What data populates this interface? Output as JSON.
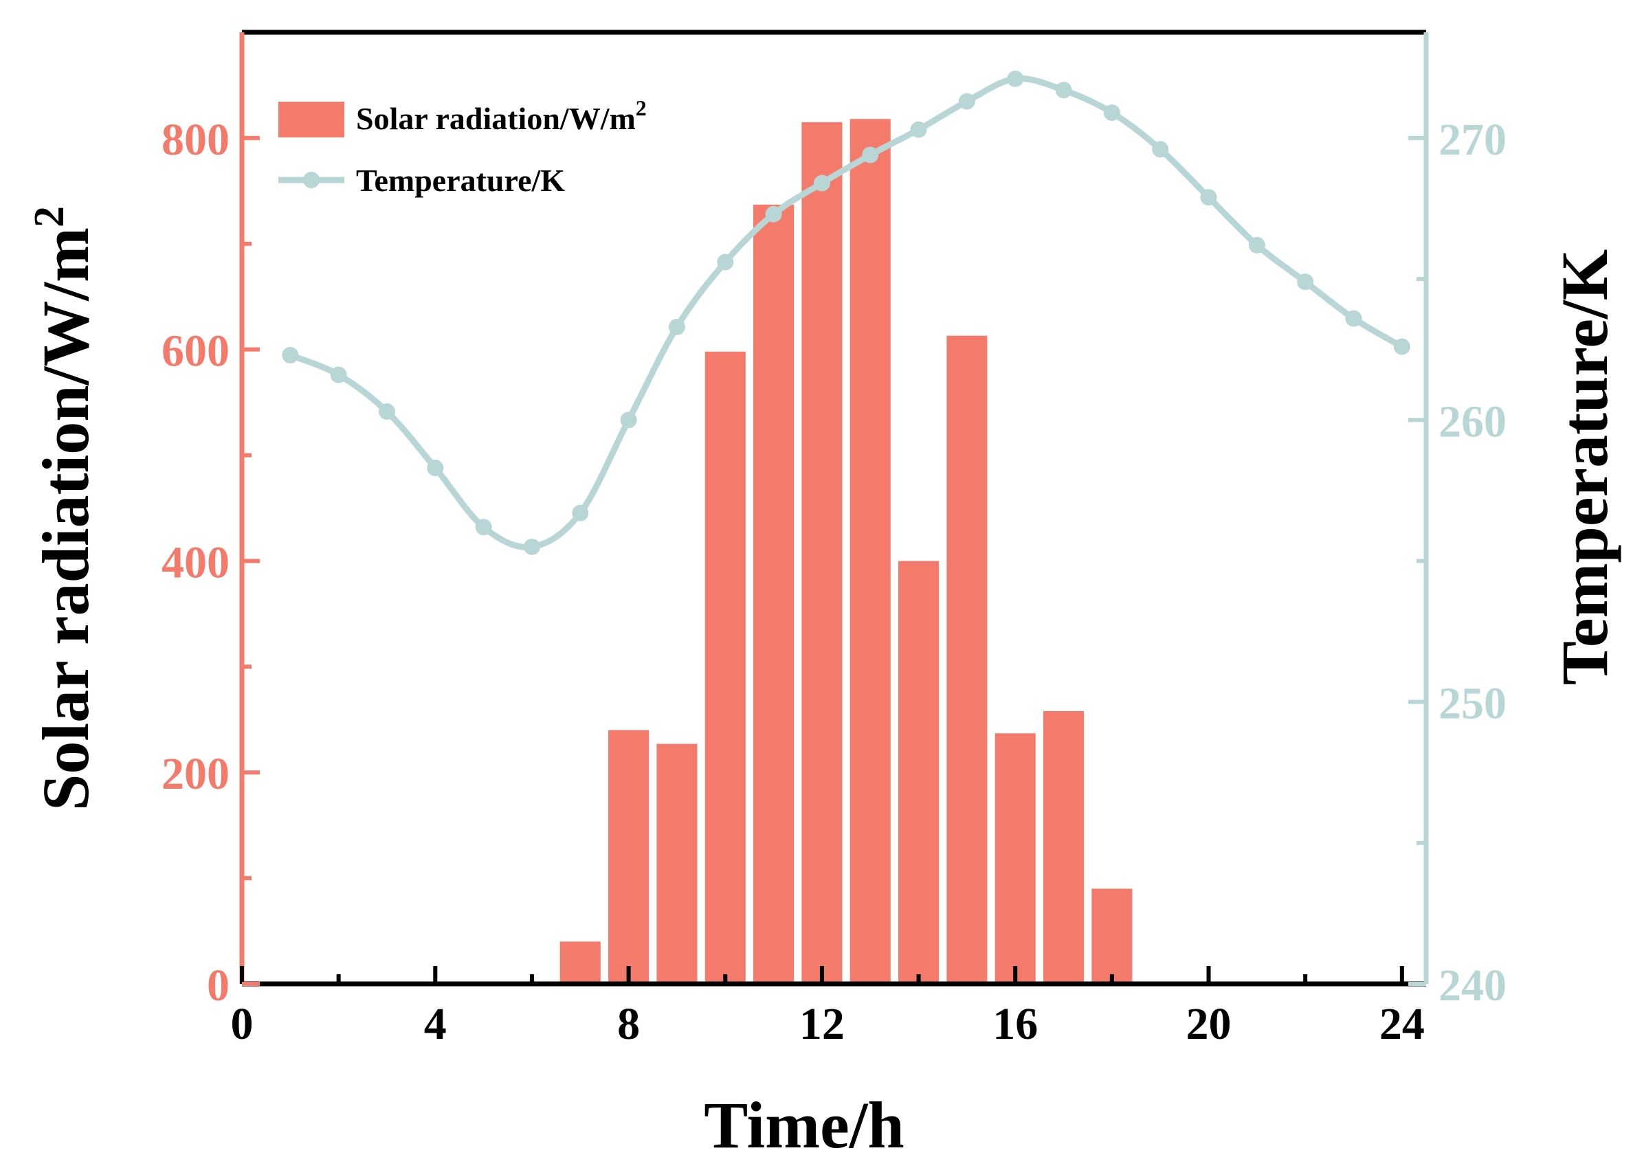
{
  "chart_data": {
    "type": "bar+line",
    "x": [
      1,
      2,
      3,
      4,
      5,
      6,
      7,
      8,
      9,
      10,
      11,
      12,
      13,
      14,
      15,
      16,
      17,
      18,
      19,
      20,
      21,
      22,
      23,
      24
    ],
    "xlabel": "Time/h",
    "xlim": [
      0,
      24.5
    ],
    "xticks": [
      0,
      4,
      8,
      12,
      16,
      20,
      24
    ],
    "xtick_labels": [
      "0",
      "4",
      "8",
      "12",
      "16",
      "20",
      "24"
    ],
    "series": [
      {
        "name": "Solar radiation/W/m",
        "name_superscript": "2",
        "kind": "bar",
        "axis": "left",
        "color": "#f47b6b",
        "values": [
          0,
          0,
          0,
          0,
          0,
          0,
          40,
          240,
          227,
          598,
          737,
          815,
          818,
          400,
          613,
          237,
          258,
          90,
          0,
          0,
          0,
          0,
          0,
          0
        ]
      },
      {
        "name": "Temperature/K",
        "kind": "line",
        "axis": "right",
        "color": "#b9d6d6",
        "values": [
          262.3,
          261.6,
          260.3,
          258.3,
          256.2,
          255.5,
          256.7,
          260.0,
          263.3,
          265.6,
          267.3,
          268.4,
          269.4,
          270.3,
          271.3,
          272.1,
          271.7,
          270.9,
          269.6,
          267.9,
          266.2,
          264.9,
          263.6,
          262.6
        ]
      }
    ],
    "left_axis": {
      "label": "Solar radiation/W/m",
      "label_superscript": "2",
      "ylim": [
        0,
        900
      ],
      "ticks": [
        0,
        200,
        400,
        600,
        800
      ],
      "tick_labels": [
        "0",
        "200",
        "400",
        "600",
        "800"
      ],
      "color": "#f47b6b"
    },
    "right_axis": {
      "label": "Temperature/K",
      "ylim": [
        240,
        273.75
      ],
      "ticks": [
        240,
        250,
        260,
        270
      ],
      "tick_labels": [
        "240",
        "250",
        "260",
        "270"
      ],
      "color": "#b9d6d6"
    },
    "legend_position": "top-left",
    "grid": false
  }
}
